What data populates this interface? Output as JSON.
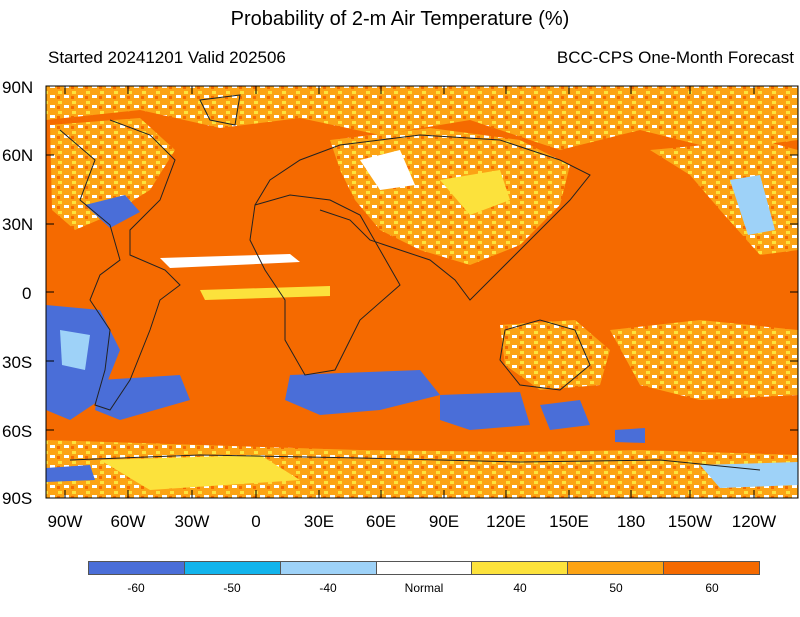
{
  "header": {
    "title": "Probability of 2-m Air Temperature (%)",
    "started": "Started 20241201  Valid 202506",
    "model": "BCC-CPS One-Month Forecast"
  },
  "map": {
    "lat_labels": [
      "90N",
      "60N",
      "30N",
      "0",
      "30S",
      "60S",
      "90S"
    ],
    "lon_labels": [
      "90W",
      "60W",
      "30W",
      "0",
      "30E",
      "60E",
      "90E",
      "120E",
      "150E",
      "180",
      "150W",
      "120W"
    ],
    "background_category": "60"
  },
  "legend": {
    "categories": [
      {
        "label": "-60",
        "color": "#4a6ed8"
      },
      {
        "label": "-50",
        "color": "#12b4ec"
      },
      {
        "label": "-40",
        "color": "#9ed2f8"
      },
      {
        "label": "Normal",
        "color": "#ffffff"
      },
      {
        "label": "40",
        "color": "#fce23c"
      },
      {
        "label": "50",
        "color": "#fca314"
      },
      {
        "label": "60",
        "color": "#f56a00"
      }
    ]
  }
}
